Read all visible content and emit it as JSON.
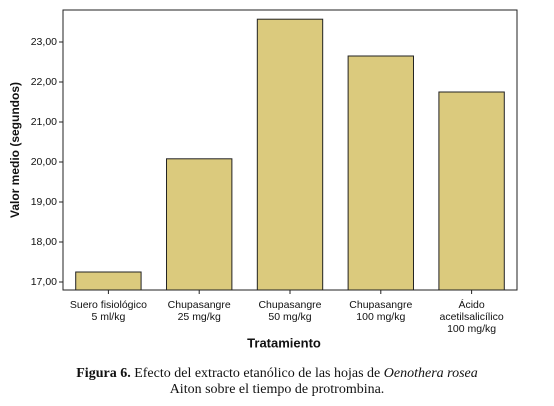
{
  "chart_data": {
    "type": "bar",
    "x_label": "Tratamiento",
    "y_label": "Valor medio (segundos)",
    "categories": [
      [
        "Suero fisiológico",
        "5 ml/kg"
      ],
      [
        "Chupasangre",
        "25 mg/kg"
      ],
      [
        "Chupasangre",
        "50 mg/kg"
      ],
      [
        "Chupasangre",
        "100 mg/kg"
      ],
      [
        "Ácido",
        "acetilsalicílico",
        "100 mg/kg"
      ]
    ],
    "values": [
      17.25,
      20.08,
      23.57,
      22.65,
      21.75
    ],
    "color": "#dbca7d",
    "ylim": [
      16.8,
      23.8
    ],
    "yticks": [
      {
        "value": 17,
        "label": "17,00"
      },
      {
        "value": 18,
        "label": "18,00"
      },
      {
        "value": 19,
        "label": "19,00"
      },
      {
        "value": 20,
        "label": "20,00"
      },
      {
        "value": 21,
        "label": "21,00"
      },
      {
        "value": 22,
        "label": "22,00"
      },
      {
        "value": 23,
        "label": "23,00"
      }
    ],
    "grid": false
  },
  "caption": {
    "label": "Figura 6.",
    "text": "Efecto del extracto etanólico de las hojas de",
    "species": "Oenothera rosea",
    "rest": "Aiton sobre el tiempo de protrombina."
  }
}
